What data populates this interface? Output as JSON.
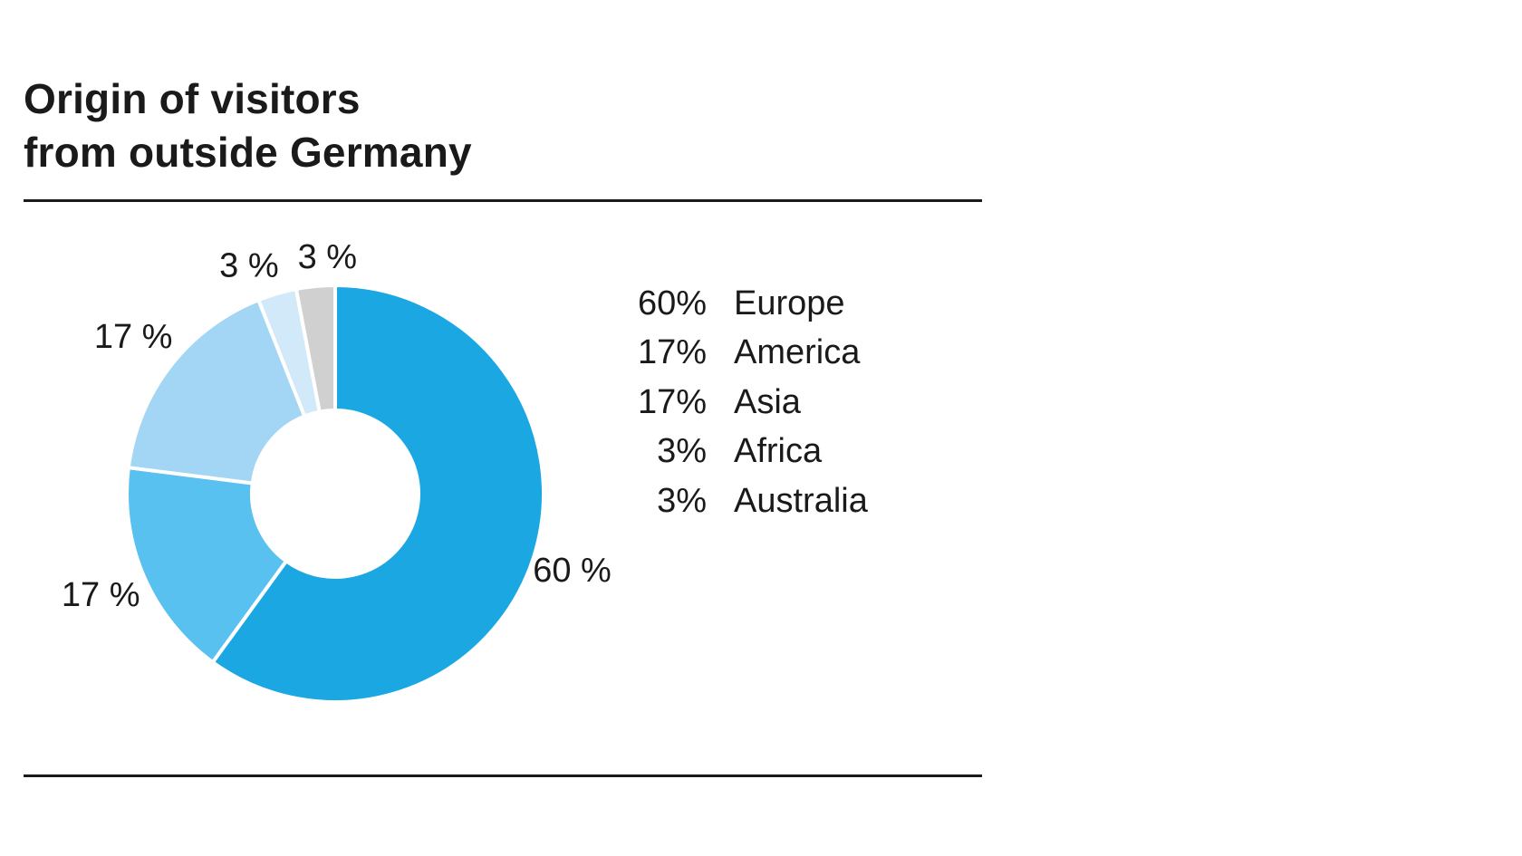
{
  "chart_data": {
    "type": "pie",
    "title_lines": [
      "Origin of visitors",
      "from outside Germany"
    ],
    "slices": [
      {
        "label": "Europe",
        "value": 60,
        "color": "#1ba8e2",
        "slice_label": "60 %",
        "legend_value": "60%"
      },
      {
        "label": "America",
        "value": 17,
        "color": "#58c1ef",
        "slice_label": "17 %",
        "legend_value": "17%"
      },
      {
        "label": "Asia",
        "value": 17,
        "color": "#a3d6f4",
        "slice_label": "17 %",
        "legend_value": "17%"
      },
      {
        "label": "Africa",
        "value": 3,
        "color": "#d2e9fa",
        "slice_label": "3 %",
        "legend_value": "3%"
      },
      {
        "label": "Australia",
        "value": 3,
        "color": "#d0d0d0",
        "slice_label": "3 %",
        "legend_value": "3%"
      }
    ],
    "legend_placement": "right",
    "donut": true
  }
}
